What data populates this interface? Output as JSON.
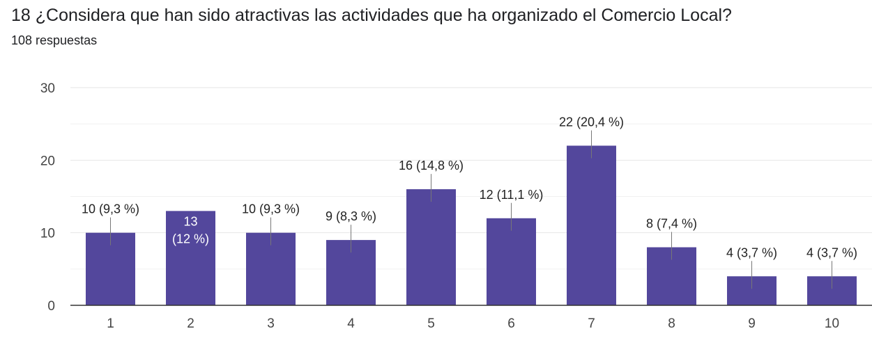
{
  "header": {
    "title": "18 ¿Considera que han sido atractivas las actividades que ha organizado el Comercio Local?",
    "responses": "108 respuestas"
  },
  "colors": {
    "bar": "#53479c",
    "grid": "#e6e6e6",
    "axis": "#333333"
  },
  "chart_data": {
    "type": "bar",
    "title": "18 ¿Considera que han sido atractivas las actividades que ha organizado el Comercio Local?",
    "subtitle": "108 respuestas",
    "categories": [
      "1",
      "2",
      "3",
      "4",
      "5",
      "6",
      "7",
      "8",
      "9",
      "10"
    ],
    "values": [
      10,
      13,
      10,
      9,
      16,
      12,
      22,
      8,
      4,
      4
    ],
    "labels": [
      "10 (9,3 %)",
      "13 (12 %)",
      "10 (9,3 %)",
      "9 (8,3 %)",
      "16 (14,8 %)",
      "12 (11,1 %)",
      "22 (20,4 %)",
      "8 (7,4 %)",
      "4 (3,7 %)",
      "4 (3,7 %)"
    ],
    "ylim": [
      0,
      30
    ],
    "yticks": [
      "0",
      "10",
      "20",
      "30"
    ],
    "grid": true,
    "legend": "none"
  }
}
